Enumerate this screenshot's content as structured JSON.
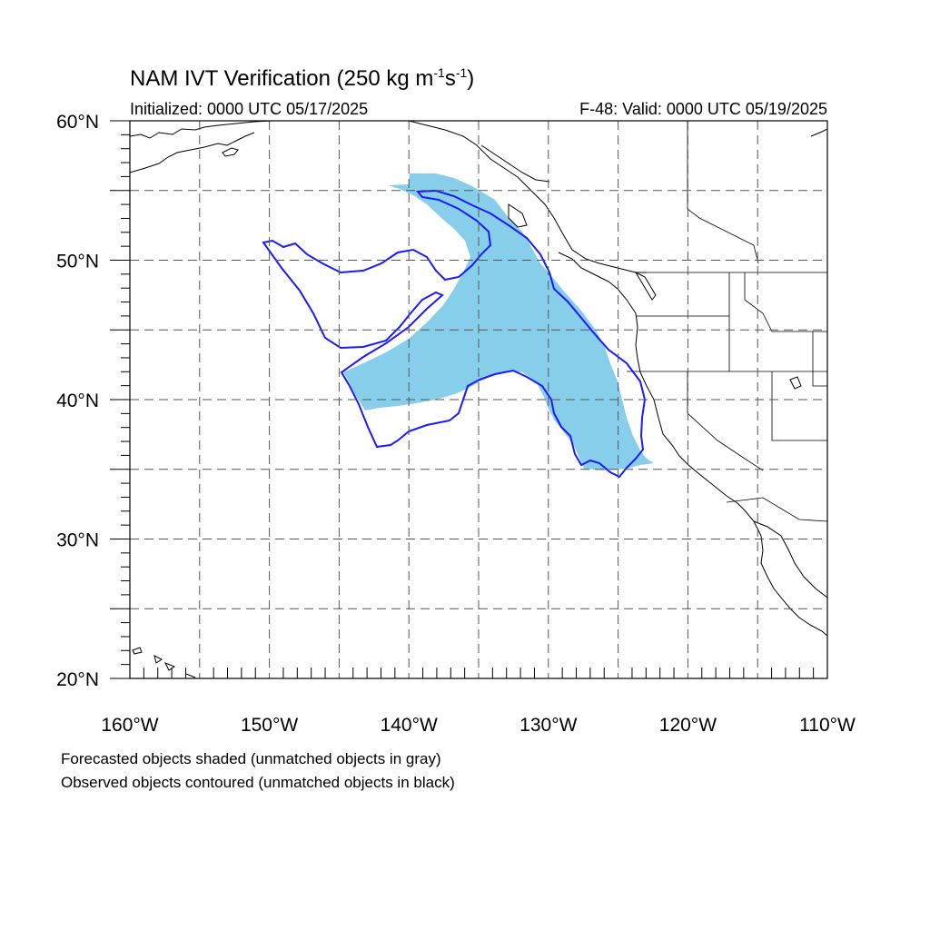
{
  "title": {
    "main": "NAM IVT Verification (250 kg m",
    "sup1": "-1",
    "mid": "s",
    "sup2": "-1",
    "end": ")"
  },
  "initialized": "Initialized: 0000 UTC 05/17/2025",
  "valid": "F-48: Valid: 0000 UTC 05/19/2025",
  "lat_labels": [
    "60°N",
    "50°N",
    "40°N",
    "30°N",
    "20°N"
  ],
  "lon_labels": [
    "160°W",
    "150°W",
    "140°W",
    "130°W",
    "120°W",
    "110°W"
  ],
  "footnotes": [
    "Forecasted objects shaded (unmatched objects in gray)",
    "Observed objects contoured (unmatched objects in black)"
  ],
  "colors": {
    "forecast_fill": "#87ceeb",
    "observed_contour": "#1a1aff",
    "coastline": "#000000",
    "grid": "#555555"
  }
}
